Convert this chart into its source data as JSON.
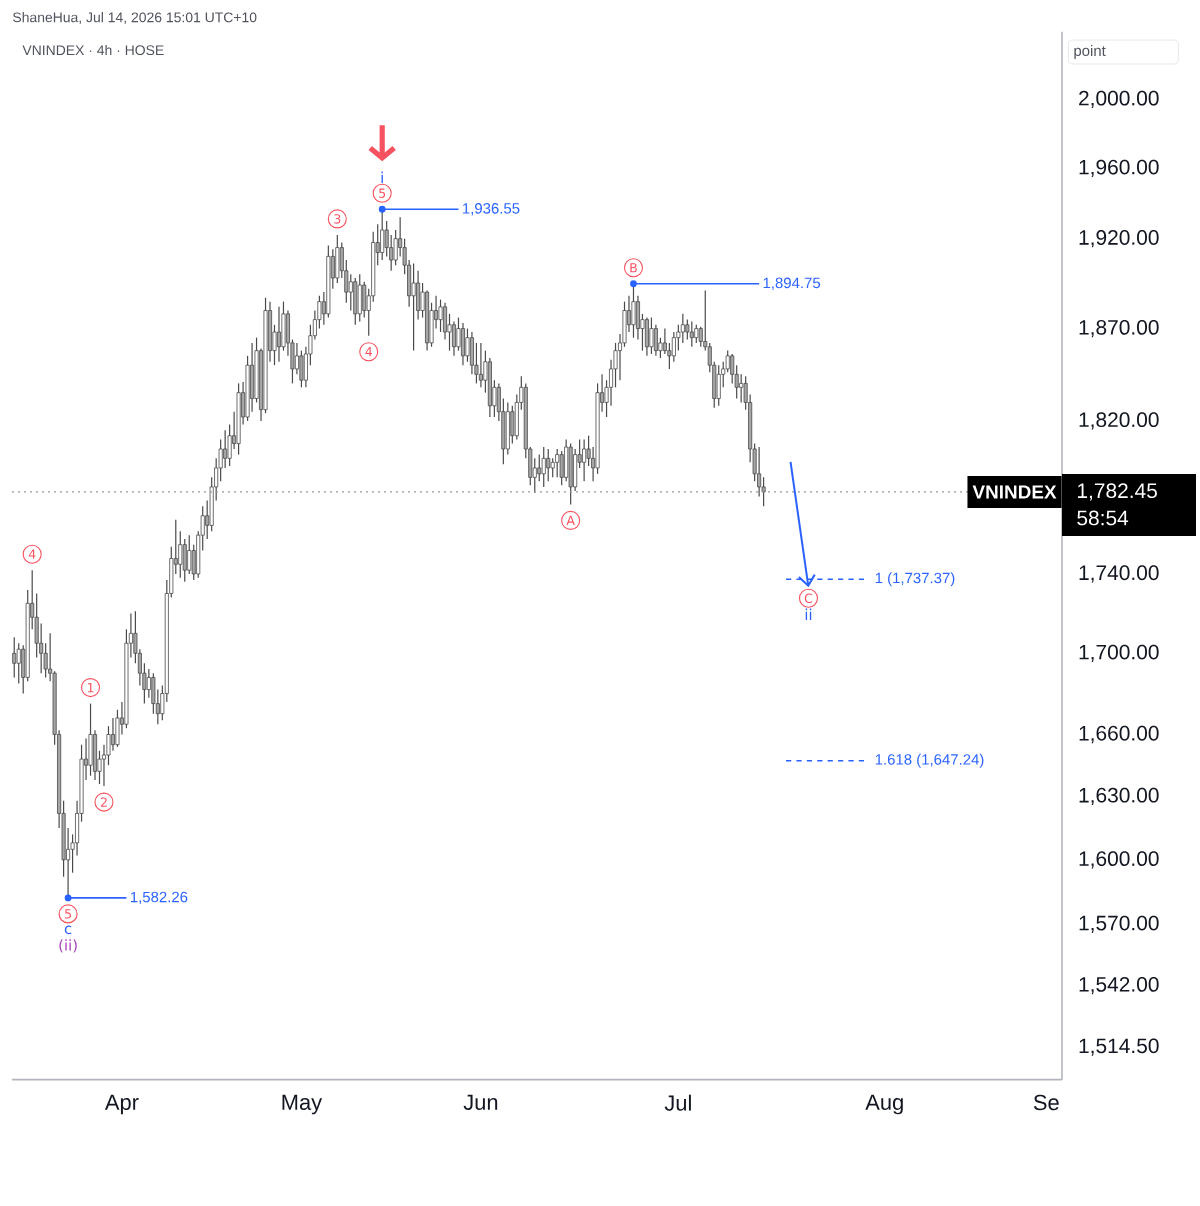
{
  "chart_data": {
    "type": "candlestick",
    "title": "VNINDEX · 4h · HOSE",
    "subtitle": "ShaneHua, Jul 14, 2026 15:01 UTC+10",
    "ylabel": "point",
    "log": "y",
    "ylim": [
      1500,
      2040
    ],
    "yticks": [
      {
        "value": 2000,
        "label": "2,000.00"
      },
      {
        "value": 1960,
        "label": "1,960.00"
      },
      {
        "value": 1920,
        "label": "1,920.00"
      },
      {
        "value": 1870,
        "label": "1,870.00"
      },
      {
        "value": 1820,
        "label": "1,820.00"
      },
      {
        "value": 1782.45,
        "label": "1,782.45"
      },
      {
        "value": 1740,
        "label": "1,740.00"
      },
      {
        "value": 1700,
        "label": "1,700.00"
      },
      {
        "value": 1660,
        "label": "1,660.00"
      },
      {
        "value": 1630,
        "label": "1,630.00"
      },
      {
        "value": 1600,
        "label": "1,600.00"
      },
      {
        "value": 1570,
        "label": "1,570.00"
      },
      {
        "value": 1542,
        "label": "1,542.00"
      },
      {
        "value": 1514.5,
        "label": "1,514.50"
      }
    ],
    "categories": [
      null,
      null,
      null,
      null,
      null,
      null,
      null,
      null,
      null,
      null,
      null,
      null,
      null,
      null,
      null,
      null,
      null,
      null,
      null,
      null,
      null,
      null,
      null,
      null,
      "Apr",
      null,
      null,
      null,
      null,
      null,
      null,
      null,
      null,
      null,
      null,
      null,
      null,
      null,
      null,
      null,
      null,
      null,
      null,
      null,
      null,
      null,
      null,
      null,
      null,
      null,
      null,
      null,
      null,
      null,
      null,
      null,
      null,
      null,
      null,
      null,
      null,
      null,
      null,
      null,
      "May",
      null,
      null,
      null,
      null,
      null,
      null,
      null,
      null,
      null,
      null,
      null,
      null,
      null,
      null,
      null,
      null,
      null,
      null,
      null,
      null,
      null,
      null,
      null,
      null,
      null,
      null,
      null,
      null,
      null,
      null,
      null,
      null,
      null,
      null,
      null,
      null,
      null,
      null,
      null,
      "Jun",
      null,
      null,
      null,
      null,
      null,
      null,
      null,
      null,
      null,
      null,
      null,
      null,
      null,
      null,
      null,
      null,
      null,
      null,
      null,
      null,
      null,
      null,
      null,
      null,
      null,
      null,
      null,
      null,
      null,
      null,
      null,
      null,
      null,
      null,
      null,
      null,
      null,
      null,
      null,
      null,
      null,
      null,
      null,
      "Jul",
      null,
      null,
      null,
      null,
      null,
      null,
      null,
      null,
      null,
      null,
      null,
      null,
      null,
      null,
      null,
      null,
      null,
      null,
      null,
      null,
      null,
      null,
      null,
      null,
      null,
      null,
      null,
      null,
      null,
      null,
      null,
      null,
      null,
      null,
      null,
      null,
      null,
      null,
      null,
      null,
      null,
      null,
      null,
      null,
      null,
      "Aug",
      null,
      null,
      null,
      null,
      null,
      null,
      null,
      null,
      null,
      null,
      null,
      null,
      null,
      null,
      null,
      null,
      null,
      null,
      null,
      null,
      null,
      null,
      null,
      null,
      null,
      null,
      null,
      null,
      null,
      null,
      null,
      null,
      null,
      null,
      null,
      "Se",
      null,
      null,
      null
    ],
    "ohlc": [
      [
        1700,
        1708,
        1688,
        1695
      ],
      [
        1695,
        1705,
        1685,
        1702
      ],
      [
        1702,
        1704,
        1680,
        1688
      ],
      [
        1688,
        1732,
        1686,
        1725
      ],
      [
        1725,
        1742,
        1712,
        1718
      ],
      [
        1718,
        1730,
        1698,
        1705
      ],
      [
        1705,
        1715,
        1690,
        1700
      ],
      [
        1700,
        1705,
        1688,
        1692
      ],
      [
        1692,
        1710,
        1686,
        1690
      ],
      [
        1690,
        1691,
        1655,
        1660
      ],
      [
        1660,
        1662,
        1615,
        1622
      ],
      [
        1622,
        1628,
        1592,
        1600
      ],
      [
        1600,
        1615,
        1582.26,
        1605
      ],
      [
        1605,
        1612,
        1594,
        1608
      ],
      [
        1608,
        1628,
        1602,
        1622
      ],
      [
        1622,
        1655,
        1618,
        1648
      ],
      [
        1648,
        1658,
        1638,
        1645
      ],
      [
        1645,
        1675,
        1640,
        1660
      ],
      [
        1660,
        1662,
        1638,
        1642
      ],
      [
        1642,
        1652,
        1636,
        1648
      ],
      [
        1648,
        1655,
        1635,
        1650
      ],
      [
        1650,
        1664,
        1645,
        1660
      ],
      [
        1660,
        1668,
        1652,
        1655
      ],
      [
        1655,
        1672,
        1654,
        1668
      ],
      [
        1668,
        1676,
        1660,
        1665
      ],
      [
        1665,
        1712,
        1663,
        1705
      ],
      [
        1705,
        1720,
        1698,
        1710
      ],
      [
        1710,
        1721,
        1695,
        1700
      ],
      [
        1700,
        1702,
        1684,
        1690
      ],
      [
        1690,
        1695,
        1675,
        1682
      ],
      [
        1682,
        1692,
        1678,
        1688
      ],
      [
        1688,
        1690,
        1670,
        1675
      ],
      [
        1675,
        1682,
        1665,
        1670
      ],
      [
        1670,
        1684,
        1667,
        1680
      ],
      [
        1680,
        1737,
        1676,
        1730
      ],
      [
        1730,
        1754,
        1728,
        1748
      ],
      [
        1748,
        1768,
        1740,
        1745
      ],
      [
        1745,
        1762,
        1738,
        1755
      ],
      [
        1755,
        1758,
        1736,
        1742
      ],
      [
        1742,
        1760,
        1740,
        1752
      ],
      [
        1752,
        1755,
        1737,
        1740
      ],
      [
        1740,
        1762,
        1738,
        1760
      ],
      [
        1760,
        1775,
        1752,
        1770
      ],
      [
        1770,
        1778,
        1758,
        1765
      ],
      [
        1765,
        1790,
        1762,
        1785
      ],
      [
        1785,
        1800,
        1778,
        1795
      ],
      [
        1795,
        1810,
        1788,
        1805
      ],
      [
        1805,
        1815,
        1795,
        1800
      ],
      [
        1800,
        1818,
        1796,
        1812
      ],
      [
        1812,
        1825,
        1805,
        1808
      ],
      [
        1808,
        1840,
        1802,
        1835
      ],
      [
        1835,
        1841,
        1818,
        1822
      ],
      [
        1822,
        1855,
        1820,
        1850
      ],
      [
        1850,
        1862,
        1825,
        1832
      ],
      [
        1832,
        1865,
        1830,
        1858
      ],
      [
        1858,
        1859,
        1820,
        1826
      ],
      [
        1826,
        1887,
        1824,
        1880
      ],
      [
        1880,
        1885,
        1852,
        1858
      ],
      [
        1858,
        1872,
        1850,
        1868
      ],
      [
        1868,
        1882,
        1852,
        1860
      ],
      [
        1860,
        1885,
        1858,
        1878
      ],
      [
        1878,
        1880,
        1855,
        1862
      ],
      [
        1862,
        1864,
        1840,
        1848
      ],
      [
        1848,
        1862,
        1845,
        1855
      ],
      [
        1855,
        1858,
        1838,
        1842
      ],
      [
        1842,
        1860,
        1838,
        1856
      ],
      [
        1856,
        1872,
        1850,
        1866
      ],
      [
        1866,
        1880,
        1864,
        1875
      ],
      [
        1875,
        1888,
        1870,
        1885
      ],
      [
        1885,
        1890,
        1872,
        1878
      ],
      [
        1878,
        1916,
        1876,
        1910
      ],
      [
        1910,
        1914,
        1892,
        1898
      ],
      [
        1898,
        1922,
        1895,
        1915
      ],
      [
        1915,
        1918,
        1898,
        1902
      ],
      [
        1902,
        1908,
        1884,
        1890
      ],
      [
        1890,
        1900,
        1880,
        1896
      ],
      [
        1896,
        1898,
        1872,
        1878
      ],
      [
        1878,
        1900,
        1874,
        1894
      ],
      [
        1894,
        1896,
        1876,
        1880
      ],
      [
        1880,
        1892,
        1866,
        1888
      ],
      [
        1888,
        1924,
        1885,
        1918
      ],
      [
        1918,
        1928,
        1905,
        1912
      ],
      [
        1912,
        1936.55,
        1908,
        1925
      ],
      [
        1925,
        1930,
        1910,
        1915
      ],
      [
        1915,
        1922,
        1902,
        1908
      ],
      [
        1908,
        1925,
        1905,
        1920
      ],
      [
        1920,
        1932,
        1910,
        1915
      ],
      [
        1915,
        1920,
        1900,
        1905
      ],
      [
        1905,
        1908,
        1882,
        1888
      ],
      [
        1888,
        1906,
        1858,
        1895
      ],
      [
        1895,
        1902,
        1875,
        1880
      ],
      [
        1880,
        1895,
        1876,
        1890
      ],
      [
        1890,
        1891,
        1858,
        1862
      ],
      [
        1862,
        1884,
        1860,
        1880
      ],
      [
        1880,
        1888,
        1870,
        1875
      ],
      [
        1875,
        1886,
        1868,
        1882
      ],
      [
        1882,
        1884,
        1864,
        1868
      ],
      [
        1868,
        1878,
        1858,
        1872
      ],
      [
        1872,
        1874,
        1855,
        1860
      ],
      [
        1860,
        1876,
        1858,
        1870
      ],
      [
        1870,
        1873,
        1850,
        1855
      ],
      [
        1855,
        1870,
        1852,
        1865
      ],
      [
        1865,
        1868,
        1845,
        1850
      ],
      [
        1850,
        1862,
        1840,
        1845
      ],
      [
        1845,
        1862,
        1838,
        1842
      ],
      [
        1842,
        1858,
        1835,
        1852
      ],
      [
        1852,
        1854,
        1822,
        1828
      ],
      [
        1828,
        1842,
        1822,
        1838
      ],
      [
        1838,
        1840,
        1820,
        1825
      ],
      [
        1825,
        1832,
        1797,
        1805
      ],
      [
        1805,
        1830,
        1802,
        1825
      ],
      [
        1825,
        1828,
        1808,
        1812
      ],
      [
        1812,
        1834,
        1810,
        1830
      ],
      [
        1830,
        1844,
        1826,
        1838
      ],
      [
        1838,
        1840,
        1800,
        1805
      ],
      [
        1805,
        1806,
        1786,
        1790
      ],
      [
        1790,
        1800,
        1782,
        1795
      ],
      [
        1795,
        1802,
        1788,
        1792
      ],
      [
        1792,
        1806,
        1785,
        1800
      ],
      [
        1800,
        1805,
        1788,
        1795
      ],
      [
        1795,
        1800,
        1790,
        1798
      ],
      [
        1798,
        1805,
        1790,
        1802
      ],
      [
        1802,
        1804,
        1786,
        1790
      ],
      [
        1790,
        1810,
        1788,
        1806
      ],
      [
        1806,
        1808,
        1776,
        1785
      ],
      [
        1785,
        1805,
        1783,
        1802
      ],
      [
        1802,
        1810,
        1795,
        1798
      ],
      [
        1798,
        1810,
        1788,
        1805
      ],
      [
        1805,
        1812,
        1796,
        1800
      ],
      [
        1800,
        1806,
        1788,
        1795
      ],
      [
        1795,
        1840,
        1792,
        1835
      ],
      [
        1835,
        1845,
        1825,
        1830
      ],
      [
        1830,
        1842,
        1822,
        1838
      ],
      [
        1838,
        1853,
        1828,
        1848
      ],
      [
        1848,
        1862,
        1838,
        1858
      ],
      [
        1858,
        1867,
        1842,
        1862
      ],
      [
        1862,
        1885,
        1860,
        1880
      ],
      [
        1880,
        1888,
        1868,
        1872
      ],
      [
        1872,
        1894.75,
        1865,
        1885
      ],
      [
        1885,
        1888,
        1864,
        1870
      ],
      [
        1870,
        1878,
        1858,
        1875
      ],
      [
        1875,
        1876,
        1855,
        1860
      ],
      [
        1860,
        1876,
        1856,
        1870
      ],
      [
        1870,
        1872,
        1855,
        1858
      ],
      [
        1858,
        1865,
        1854,
        1862
      ],
      [
        1862,
        1870,
        1856,
        1858
      ],
      [
        1858,
        1862,
        1848,
        1855
      ],
      [
        1855,
        1868,
        1852,
        1865
      ],
      [
        1865,
        1872,
        1858,
        1868
      ],
      [
        1868,
        1878,
        1862,
        1872
      ],
      [
        1872,
        1875,
        1864,
        1868
      ],
      [
        1868,
        1874,
        1860,
        1865
      ],
      [
        1865,
        1872,
        1862,
        1870
      ],
      [
        1870,
        1871,
        1860,
        1863
      ],
      [
        1863,
        1891,
        1858,
        1860
      ],
      [
        1860,
        1862,
        1846,
        1850
      ],
      [
        1850,
        1852,
        1827,
        1832
      ],
      [
        1832,
        1850,
        1828,
        1845
      ],
      [
        1845,
        1852,
        1838,
        1848
      ],
      [
        1848,
        1858,
        1846,
        1855
      ],
      [
        1855,
        1856,
        1840,
        1845
      ],
      [
        1845,
        1850,
        1832,
        1838
      ],
      [
        1838,
        1845,
        1830,
        1840
      ],
      [
        1840,
        1844,
        1826,
        1830
      ],
      [
        1830,
        1834,
        1798,
        1805
      ],
      [
        1805,
        1808,
        1788,
        1792
      ],
      [
        1792,
        1806,
        1780,
        1785
      ],
      [
        1785,
        1790,
        1775,
        1782.45
      ],
      null,
      null,
      null,
      null,
      null,
      null,
      null,
      null,
      null,
      null,
      null,
      null,
      null,
      null,
      null,
      null,
      null,
      null,
      null,
      null,
      null,
      null,
      null,
      null,
      null,
      null,
      null,
      null,
      null,
      null,
      null,
      null,
      null,
      null,
      null,
      null,
      null,
      null,
      null,
      null,
      null,
      null,
      null,
      null,
      null,
      null,
      null,
      null,
      null,
      null,
      null,
      null,
      null,
      null,
      null,
      null,
      null,
      null,
      null,
      null,
      null,
      null,
      null,
      null,
      null,
      null
    ],
    "colors": [
      "#a6a6a6",
      "#ffffff",
      "#a6a6a6",
      "#ffffff",
      "#a6a6a6",
      "#a6a6a6",
      "#a6a6a6",
      "#a6a6a6",
      "#a6a6a6",
      "#a6a6a6",
      "#a6a6a6",
      "#a6a6a6",
      "#ffffff",
      "#ffffff",
      "#ffffff",
      "#ffffff",
      "#a6a6a6",
      "#ffffff",
      "#a6a6a6",
      "#ffffff",
      "#ffffff",
      "#ffffff",
      "#a6a6a6",
      "#ffffff",
      "#a6a6a6",
      "#ffffff",
      "#ffffff",
      "#a6a6a6",
      "#a6a6a6",
      "#a6a6a6",
      "#ffffff",
      "#a6a6a6",
      "#a6a6a6",
      "#ffffff",
      "#ffffff",
      "#ffffff",
      "#a6a6a6",
      "#ffffff",
      "#a6a6a6",
      "#ffffff",
      "#a6a6a6",
      "#ffffff",
      "#ffffff",
      "#a6a6a6",
      "#ffffff",
      "#ffffff",
      "#ffffff",
      "#a6a6a6",
      "#ffffff",
      "#a6a6a6",
      "#ffffff",
      "#a6a6a6",
      "#ffffff",
      "#a6a6a6",
      "#ffffff",
      "#a6a6a6",
      "#ffffff",
      "#a6a6a6",
      "#ffffff",
      "#a6a6a6",
      "#ffffff",
      "#a6a6a6",
      "#a6a6a6",
      "#ffffff",
      "#a6a6a6",
      "#ffffff",
      "#ffffff",
      "#ffffff",
      "#ffffff",
      "#a6a6a6",
      "#ffffff",
      "#a6a6a6",
      "#ffffff",
      "#a6a6a6",
      "#a6a6a6",
      "#ffffff",
      "#a6a6a6",
      "#ffffff",
      "#a6a6a6",
      "#ffffff",
      "#ffffff",
      "#a6a6a6",
      "#ffffff",
      "#a6a6a6",
      "#a6a6a6",
      "#ffffff",
      "#a6a6a6",
      "#a6a6a6",
      "#a6a6a6",
      "#ffffff",
      "#a6a6a6",
      "#ffffff",
      "#a6a6a6",
      "#ffffff",
      "#a6a6a6",
      "#ffffff",
      "#a6a6a6",
      "#ffffff",
      "#a6a6a6",
      "#ffffff",
      "#a6a6a6",
      "#ffffff",
      "#a6a6a6",
      "#a6a6a6",
      "#a6a6a6",
      "#ffffff",
      "#a6a6a6",
      "#ffffff",
      "#a6a6a6",
      "#a6a6a6",
      "#ffffff",
      "#a6a6a6",
      "#ffffff",
      "#ffffff",
      "#a6a6a6",
      "#a6a6a6",
      "#ffffff",
      "#a6a6a6",
      "#ffffff",
      "#a6a6a6",
      "#ffffff",
      "#ffffff",
      "#a6a6a6",
      "#ffffff",
      "#a6a6a6",
      "#ffffff",
      "#a6a6a6",
      "#ffffff",
      "#a6a6a6",
      "#a6a6a6",
      "#ffffff",
      "#a6a6a6",
      "#ffffff",
      "#ffffff",
      "#ffffff",
      "#ffffff",
      "#ffffff",
      "#a6a6a6",
      "#ffffff",
      "#a6a6a6",
      "#ffffff",
      "#a6a6a6",
      "#ffffff",
      "#a6a6a6",
      "#ffffff",
      "#a6a6a6",
      "#a6a6a6",
      "#ffffff",
      "#ffffff",
      "#ffffff",
      "#a6a6a6",
      "#a6a6a6",
      "#ffffff",
      "#a6a6a6",
      "#a6a6a6",
      "#a6a6a6",
      "#a6a6a6",
      "#ffffff",
      "#ffffff",
      "#ffffff",
      "#a6a6a6",
      "#a6a6a6",
      "#ffffff",
      "#a6a6a6",
      "#a6a6a6",
      "#a6a6a6",
      "#a6a6a6",
      "#a6a6a6",
      null,
      null,
      null,
      null,
      null,
      null,
      null,
      null,
      null,
      null,
      null,
      null,
      null,
      null,
      null,
      null,
      null,
      null,
      null,
      null,
      null,
      null,
      null,
      null,
      null,
      null,
      null,
      null,
      null,
      null,
      null,
      null,
      null,
      null,
      null,
      null,
      null,
      null,
      null,
      null,
      null,
      null,
      null,
      null,
      null,
      null,
      null,
      null,
      null,
      null,
      null,
      null,
      null,
      null,
      null,
      null,
      null,
      null,
      null,
      null,
      null,
      null,
      null,
      null,
      null,
      null
    ],
    "ref_lines": [
      {
        "axis": "y",
        "value": 1936.55,
        "label": "1,936.55",
        "color": "#2962ff"
      },
      {
        "axis": "y",
        "value": 1894.75,
        "label": "1,894.75",
        "color": "#2962ff"
      },
      {
        "axis": "y",
        "value": 1582.26,
        "label": "1,582.26",
        "color": "#2962ff"
      },
      {
        "axis": "y",
        "value": 1782.45,
        "label": "VNINDEX",
        "color": "#9598a1",
        "line_style": "dotted"
      },
      {
        "axis": "y",
        "value": 1737.37,
        "label": "1 (1,737.37)",
        "color": "#2962ff",
        "line_style": "dashed"
      },
      {
        "axis": "y",
        "value": 1647.24,
        "label": "1.618 (1,647.24)",
        "color": "#2962ff",
        "line_style": "dashed"
      }
    ],
    "annotations": [
      {
        "text": "4",
        "y": 1742
      },
      {
        "text": "1",
        "y": 1675
      },
      {
        "text": "2",
        "y": 1635
      },
      {
        "text": "5",
        "y": 1582.26
      },
      {
        "text": "c",
        "y": 1582.26
      },
      {
        "text": "(ii)",
        "y": 1582.26
      },
      {
        "text": "3",
        "y": 1922
      },
      {
        "text": "4",
        "y": 1866
      },
      {
        "text": "5",
        "y": 1936.55
      },
      {
        "text": "i",
        "y": 1936.55
      },
      {
        "text": "A",
        "y": 1776
      },
      {
        "text": "B",
        "y": 1894.75
      },
      {
        "text": "C",
        "y": 1737.37
      },
      {
        "text": "ii",
        "y": 1737.37
      },
      "58:54"
    ]
  }
}
